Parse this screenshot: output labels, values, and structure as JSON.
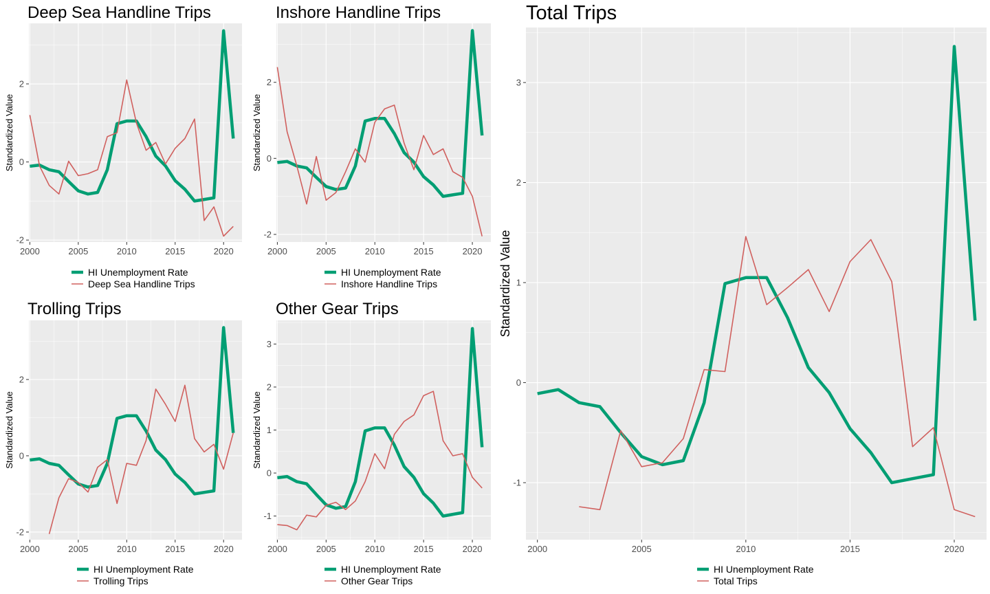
{
  "colors": {
    "unemployment": "#009E73",
    "trips": "#D0605E",
    "panel_bg": "#EBEBEB",
    "grid": "#FFFFFF"
  },
  "chart_data": [
    {
      "id": "deep-sea",
      "type": "line",
      "title": "Deep Sea Handline Trips",
      "xlabel": "",
      "ylabel": "Standardized Value",
      "xlim": [
        1999.9,
        2021.9
      ],
      "ylim": [
        -2.05,
        3.55
      ],
      "xticks": [
        2000,
        2005,
        2010,
        2015,
        2020
      ],
      "yticks": [
        -2,
        0,
        2
      ],
      "ytick_labels": [
        "-2",
        "0",
        "2"
      ],
      "grid": true,
      "legend_position": "bottom",
      "series": [
        {
          "name": "HI Unemployment Rate",
          "color": "#009E73",
          "width": "thick",
          "x": [
            2000,
            2001,
            2002,
            2003,
            2004,
            2005,
            2006,
            2007,
            2008,
            2009,
            2010,
            2011,
            2012,
            2013,
            2014,
            2015,
            2016,
            2017,
            2018,
            2019,
            2020,
            2021
          ],
          "y": [
            -0.11,
            -0.08,
            -0.2,
            -0.25,
            -0.5,
            -0.74,
            -0.82,
            -0.78,
            -0.2,
            0.98,
            1.05,
            1.05,
            0.65,
            0.15,
            -0.1,
            -0.48,
            -0.7,
            -1.0,
            -0.96,
            -0.92,
            3.36,
            0.6
          ]
        },
        {
          "name": "Deep Sea Handline Trips",
          "color": "#D0605E",
          "width": "thin",
          "x": [
            2000,
            2001,
            2002,
            2003,
            2004,
            2005,
            2006,
            2007,
            2008,
            2009,
            2010,
            2011,
            2012,
            2013,
            2014,
            2015,
            2016,
            2017,
            2018,
            2019,
            2020,
            2021
          ],
          "y": [
            1.2,
            -0.1,
            -0.6,
            -0.82,
            0.02,
            -0.35,
            -0.3,
            -0.2,
            0.65,
            0.75,
            2.1,
            1.0,
            0.3,
            0.5,
            -0.05,
            0.35,
            0.6,
            1.1,
            -1.5,
            -1.15,
            -1.9,
            -1.65
          ]
        }
      ]
    },
    {
      "id": "inshore",
      "type": "line",
      "title": "Inshore Handline Trips",
      "xlabel": "",
      "ylabel": "Standardized Value",
      "xlim": [
        1999.9,
        2021.9
      ],
      "ylim": [
        -2.2,
        3.55
      ],
      "xticks": [
        2000,
        2005,
        2010,
        2015,
        2020
      ],
      "yticks": [
        -2,
        0,
        2
      ],
      "ytick_labels": [
        "-2",
        "0",
        "2"
      ],
      "grid": true,
      "legend_position": "bottom",
      "series": [
        {
          "name": "HI Unemployment Rate",
          "color": "#009E73",
          "width": "thick",
          "x": [
            2000,
            2001,
            2002,
            2003,
            2004,
            2005,
            2006,
            2007,
            2008,
            2009,
            2010,
            2011,
            2012,
            2013,
            2014,
            2015,
            2016,
            2017,
            2018,
            2019,
            2020,
            2021
          ],
          "y": [
            -0.11,
            -0.08,
            -0.2,
            -0.25,
            -0.5,
            -0.74,
            -0.82,
            -0.78,
            -0.2,
            0.98,
            1.05,
            1.05,
            0.65,
            0.15,
            -0.1,
            -0.48,
            -0.7,
            -1.0,
            -0.96,
            -0.92,
            3.36,
            0.6
          ]
        },
        {
          "name": "Inshore Handline Trips",
          "color": "#D0605E",
          "width": "thin",
          "x": [
            2000,
            2001,
            2002,
            2003,
            2004,
            2005,
            2006,
            2007,
            2008,
            2009,
            2010,
            2011,
            2012,
            2013,
            2014,
            2015,
            2016,
            2017,
            2018,
            2019,
            2020,
            2021
          ],
          "y": [
            2.4,
            0.7,
            -0.2,
            -1.2,
            0.05,
            -1.1,
            -0.9,
            -0.35,
            0.25,
            -0.1,
            0.95,
            1.3,
            1.4,
            0.4,
            -0.3,
            0.6,
            0.1,
            0.25,
            -0.35,
            -0.5,
            -1.0,
            -2.05
          ]
        }
      ]
    },
    {
      "id": "trolling",
      "type": "line",
      "title": "Trolling Trips",
      "xlabel": "",
      "ylabel": "Standardized Value",
      "xlim": [
        1999.9,
        2021.9
      ],
      "ylim": [
        -2.2,
        3.55
      ],
      "xticks": [
        2000,
        2005,
        2010,
        2015,
        2020
      ],
      "yticks": [
        -2,
        0,
        2
      ],
      "ytick_labels": [
        "-2",
        "0",
        "2"
      ],
      "grid": true,
      "legend_position": "bottom",
      "series": [
        {
          "name": "HI Unemployment Rate",
          "color": "#009E73",
          "width": "thick",
          "x": [
            2000,
            2001,
            2002,
            2003,
            2004,
            2005,
            2006,
            2007,
            2008,
            2009,
            2010,
            2011,
            2012,
            2013,
            2014,
            2015,
            2016,
            2017,
            2018,
            2019,
            2020,
            2021
          ],
          "y": [
            -0.11,
            -0.08,
            -0.2,
            -0.25,
            -0.5,
            -0.74,
            -0.82,
            -0.78,
            -0.2,
            0.98,
            1.05,
            1.05,
            0.65,
            0.15,
            -0.1,
            -0.48,
            -0.7,
            -1.0,
            -0.96,
            -0.92,
            3.36,
            0.6
          ]
        },
        {
          "name": "Trolling Trips",
          "color": "#D0605E",
          "width": "thin",
          "x": [
            2002,
            2003,
            2004,
            2005,
            2006,
            2007,
            2008,
            2009,
            2010,
            2011,
            2012,
            2013,
            2014,
            2015,
            2016,
            2017,
            2018,
            2019,
            2020,
            2021
          ],
          "y": [
            -2.05,
            -1.1,
            -0.6,
            -0.7,
            -0.95,
            -0.3,
            -0.1,
            -1.25,
            -0.2,
            -0.25,
            0.4,
            1.75,
            1.35,
            0.9,
            1.85,
            0.45,
            0.1,
            0.3,
            -0.35,
            0.6
          ]
        }
      ]
    },
    {
      "id": "other-gear",
      "type": "line",
      "title": "Other Gear Trips",
      "xlabel": "",
      "ylabel": "Standardized Value",
      "xlim": [
        1999.9,
        2021.9
      ],
      "ylim": [
        -1.55,
        3.55
      ],
      "xticks": [
        2000,
        2005,
        2010,
        2015,
        2020
      ],
      "yticks": [
        -1,
        0,
        1,
        2,
        3
      ],
      "ytick_labels": [
        "-1",
        "0",
        "1",
        "2",
        "3"
      ],
      "grid": true,
      "legend_position": "bottom",
      "series": [
        {
          "name": "HI Unemployment Rate",
          "color": "#009E73",
          "width": "thick",
          "x": [
            2000,
            2001,
            2002,
            2003,
            2004,
            2005,
            2006,
            2007,
            2008,
            2009,
            2010,
            2011,
            2012,
            2013,
            2014,
            2015,
            2016,
            2017,
            2018,
            2019,
            2020,
            2021
          ],
          "y": [
            -0.11,
            -0.08,
            -0.2,
            -0.25,
            -0.5,
            -0.74,
            -0.82,
            -0.78,
            -0.2,
            0.98,
            1.05,
            1.05,
            0.65,
            0.15,
            -0.1,
            -0.48,
            -0.7,
            -1.0,
            -0.96,
            -0.92,
            3.36,
            0.6
          ]
        },
        {
          "name": "Other Gear Trips",
          "color": "#D0605E",
          "width": "thin",
          "x": [
            2000,
            2001,
            2002,
            2003,
            2004,
            2005,
            2006,
            2007,
            2008,
            2009,
            2010,
            2011,
            2012,
            2013,
            2014,
            2015,
            2016,
            2017,
            2018,
            2019,
            2020,
            2021
          ],
          "y": [
            -1.2,
            -1.22,
            -1.32,
            -0.98,
            -1.02,
            -0.75,
            -0.68,
            -0.85,
            -0.65,
            -0.2,
            0.45,
            0.1,
            0.9,
            1.2,
            1.35,
            1.8,
            1.9,
            0.75,
            0.4,
            0.45,
            -0.1,
            -0.35
          ]
        }
      ]
    },
    {
      "id": "total",
      "type": "line",
      "title": "Total Trips",
      "xlabel": "",
      "ylabel": "Standardized Value",
      "xlim": [
        1999.45,
        2021.55
      ],
      "ylim": [
        -1.57,
        3.55
      ],
      "xticks": [
        2000,
        2005,
        2010,
        2015,
        2020
      ],
      "yticks": [
        -1,
        0,
        1,
        2,
        3
      ],
      "ytick_labels": [
        "-1",
        "0",
        "1",
        "2",
        "3"
      ],
      "grid": true,
      "legend_position": "bottom",
      "series": [
        {
          "name": "HI Unemployment Rate",
          "color": "#009E73",
          "width": "thick",
          "x": [
            2000,
            2001,
            2002,
            2003,
            2004,
            2005,
            2006,
            2007,
            2008,
            2009,
            2010,
            2011,
            2012,
            2013,
            2014,
            2015,
            2016,
            2017,
            2018,
            2019,
            2020,
            2021
          ],
          "y": [
            -0.11,
            -0.07,
            -0.2,
            -0.24,
            -0.5,
            -0.74,
            -0.82,
            -0.78,
            -0.2,
            0.99,
            1.05,
            1.05,
            0.65,
            0.15,
            -0.1,
            -0.46,
            -0.7,
            -1.0,
            -0.96,
            -0.92,
            3.36,
            0.62
          ]
        },
        {
          "name": "Total Trips",
          "color": "#D0605E",
          "width": "thin",
          "x": [
            2002,
            2003,
            2004,
            2005,
            2006,
            2007,
            2008,
            2009,
            2010,
            2011,
            2012,
            2013,
            2014,
            2015,
            2016,
            2017,
            2018,
            2019,
            2020,
            2021
          ],
          "y": [
            -1.24,
            -1.27,
            -0.48,
            -0.84,
            -0.8,
            -0.56,
            0.13,
            0.11,
            1.46,
            0.78,
            0.95,
            1.13,
            0.71,
            1.21,
            1.43,
            1.01,
            -0.64,
            -0.45,
            -1.27,
            -1.34
          ]
        }
      ]
    }
  ]
}
